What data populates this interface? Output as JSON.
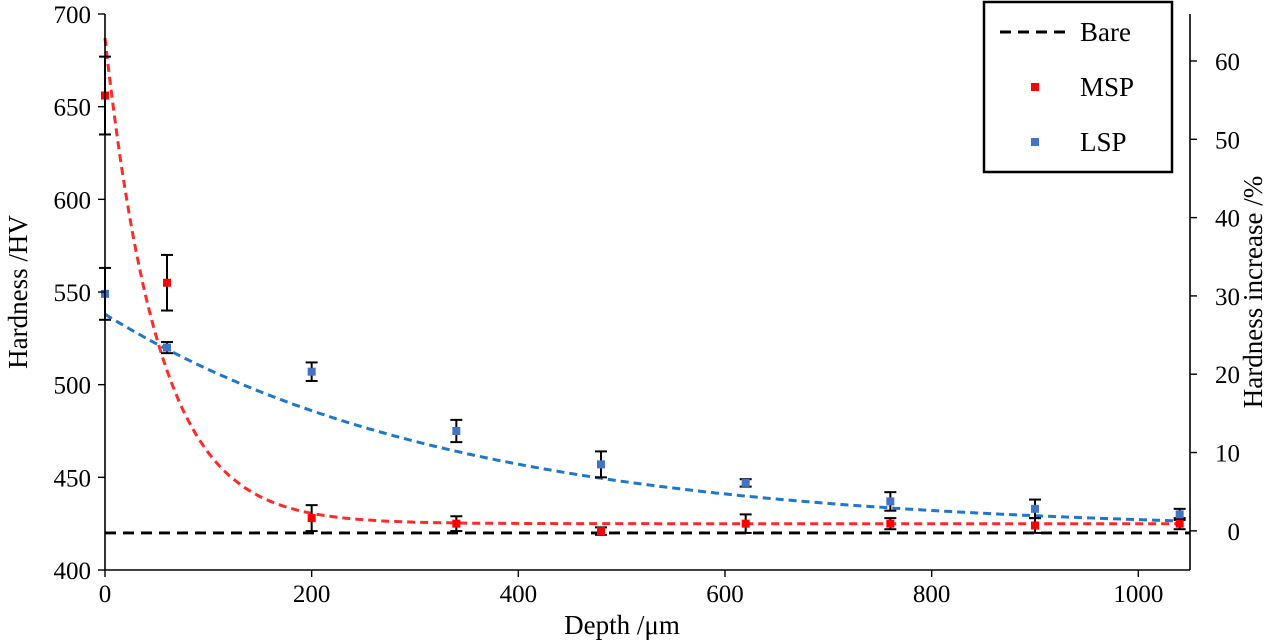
{
  "chart_data": {
    "type": "scatter",
    "xlabel": "Depth /μm",
    "ylabel": "Hardness /HV",
    "y2label": "Hardness increase /%",
    "xlim": [
      0,
      1050
    ],
    "ylim": [
      400,
      700
    ],
    "y2lim": [
      -5,
      66
    ],
    "x_ticks": [
      0,
      200,
      400,
      600,
      800,
      1000
    ],
    "y_ticks": [
      400,
      450,
      500,
      550,
      600,
      650,
      700
    ],
    "y2_ticks": [
      0,
      10,
      20,
      30,
      40,
      50,
      60
    ],
    "grid": false,
    "legend_position": "top-right",
    "baseline": {
      "name": "Bare",
      "value": 420,
      "color": "#000000",
      "style": "dashed"
    },
    "series": [
      {
        "name": "MSP",
        "color": "#ff0000",
        "fit_color": "#ff2a2a",
        "points": [
          {
            "x": 0,
            "y": 656,
            "err": 21
          },
          {
            "x": 60,
            "y": 555,
            "err": 15
          },
          {
            "x": 200,
            "y": 428,
            "err": 7
          },
          {
            "x": 340,
            "y": 425,
            "err": 4
          },
          {
            "x": 480,
            "y": 421,
            "err": 2
          },
          {
            "x": 620,
            "y": 425,
            "err": 5
          },
          {
            "x": 760,
            "y": 425,
            "err": 3
          },
          {
            "x": 900,
            "y": 424,
            "err": 4
          },
          {
            "x": 1040,
            "y": 425,
            "err": 3
          }
        ],
        "fit": {
          "kind": "exponential",
          "asymptote": 425,
          "amplitude": 262,
          "decay_length": 52
        }
      },
      {
        "name": "LSP",
        "color": "#4472c4",
        "fit_color": "#1f77c9",
        "points": [
          {
            "x": 0,
            "y": 549,
            "err": 14
          },
          {
            "x": 60,
            "y": 520,
            "err": 3
          },
          {
            "x": 200,
            "y": 507,
            "err": 5
          },
          {
            "x": 340,
            "y": 475,
            "err": 6
          },
          {
            "x": 480,
            "y": 457,
            "err": 7
          },
          {
            "x": 620,
            "y": 447,
            "err": 2
          },
          {
            "x": 760,
            "y": 437,
            "err": 5
          },
          {
            "x": 900,
            "y": 433,
            "err": 5
          },
          {
            "x": 1040,
            "y": 430,
            "err": 3
          }
        ],
        "fit": {
          "kind": "exponential",
          "asymptote": 421,
          "amplitude": 117,
          "decay_length": 340
        }
      }
    ]
  }
}
